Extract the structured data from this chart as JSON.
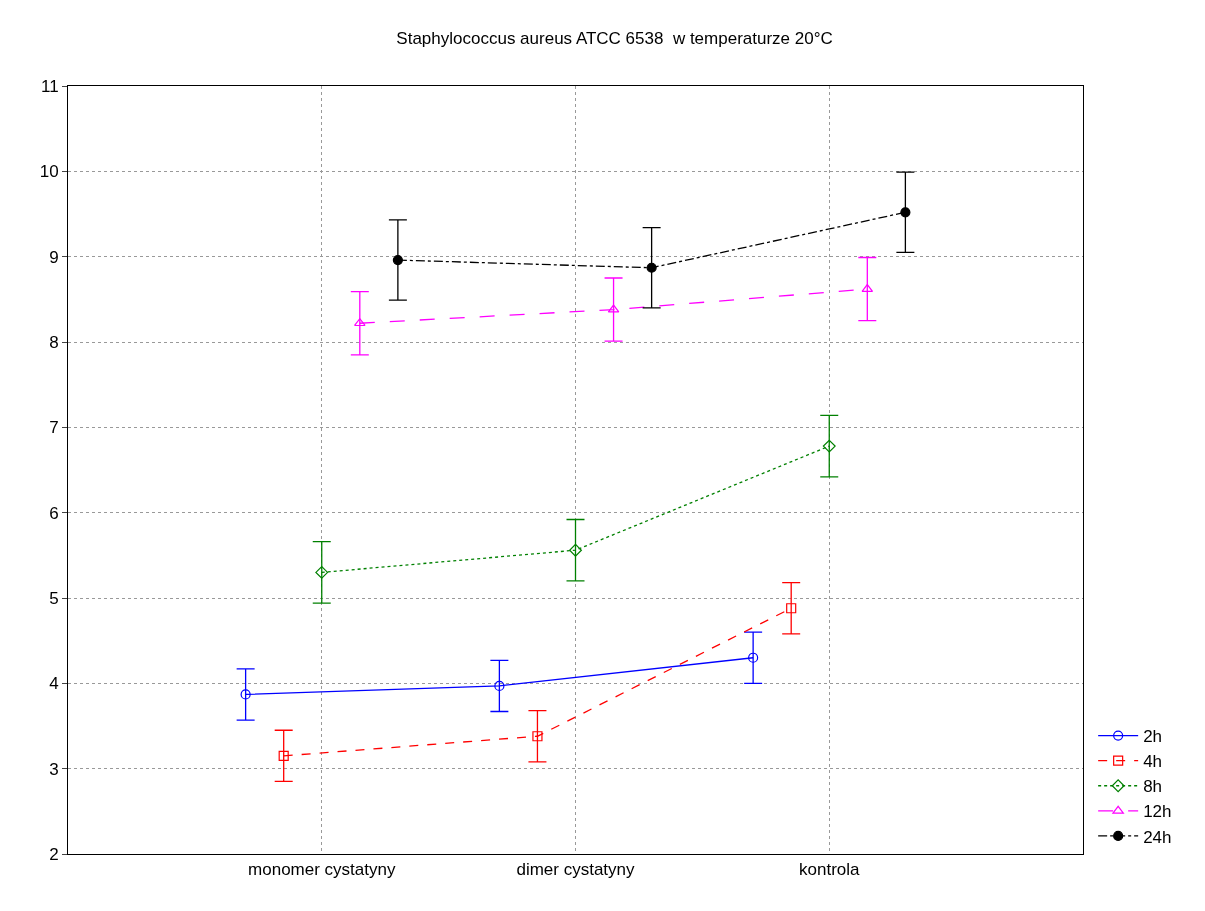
{
  "chart_data": {
    "type": "line",
    "title": "Staphylococcus aureus ATCC 6538  w temperaturze 20°C",
    "categories": [
      "monomer cystatyny",
      "dimer cystatyny",
      "kontrola"
    ],
    "series": [
      {
        "name": "2h",
        "color": "#0000ff",
        "values": [
          3.87,
          3.97,
          4.3
        ],
        "errors": [
          0.3,
          0.3,
          0.3
        ],
        "marker": "circle",
        "line_style": "solid"
      },
      {
        "name": "4h",
        "color": "#ff0000",
        "values": [
          3.15,
          3.38,
          4.88
        ],
        "errors": [
          0.3,
          0.3,
          0.3
        ],
        "marker": "square",
        "line_style": "dashed"
      },
      {
        "name": "8h",
        "color": "#008000",
        "values": [
          5.3,
          5.56,
          6.78
        ],
        "errors": [
          0.36,
          0.36,
          0.36
        ],
        "marker": "diamond",
        "line_style": "dotted"
      },
      {
        "name": "12h",
        "color": "#ff00ff",
        "values": [
          8.22,
          8.38,
          8.62
        ],
        "errors": [
          0.37,
          0.37,
          0.37
        ],
        "marker": "triangle",
        "line_style": "longdash"
      },
      {
        "name": "24h",
        "color": "#000000",
        "values": [
          8.96,
          8.87,
          9.52
        ],
        "errors": [
          0.47,
          0.47,
          0.47
        ],
        "marker": "circle",
        "line_style": "dashdot"
      }
    ],
    "ylim": [
      2,
      11
    ],
    "yticks": [
      2,
      3,
      4,
      5,
      6,
      7,
      8,
      9,
      10,
      11
    ],
    "grid": true,
    "legend": "bottom right"
  }
}
